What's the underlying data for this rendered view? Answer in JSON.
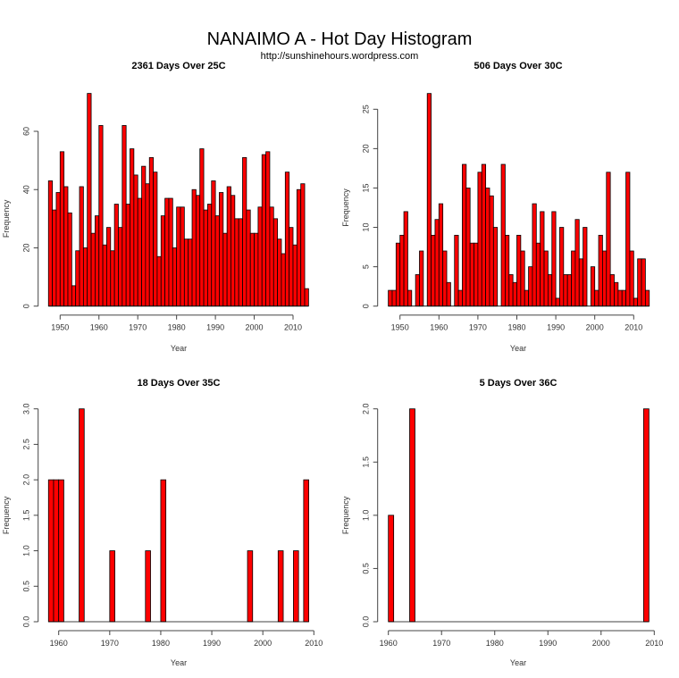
{
  "title": "NANAIMO A - Hot Day Histogram",
  "subtitle": "http://sunshinehours.wordpress.com",
  "colors": {
    "bar_fill": "#ff0000",
    "bar_stroke": "#000000"
  },
  "chart_data": [
    {
      "type": "bar",
      "title": "2361 Days Over 25C",
      "xlabel": "Year",
      "ylabel": "Frequency",
      "bin_width": 1,
      "x": [
        1947,
        1948,
        1949,
        1950,
        1951,
        1952,
        1953,
        1954,
        1955,
        1956,
        1957,
        1958,
        1959,
        1960,
        1961,
        1962,
        1963,
        1964,
        1965,
        1966,
        1967,
        1968,
        1969,
        1970,
        1971,
        1972,
        1973,
        1974,
        1975,
        1976,
        1977,
        1978,
        1979,
        1980,
        1981,
        1982,
        1983,
        1984,
        1985,
        1986,
        1987,
        1988,
        1989,
        1990,
        1991,
        1992,
        1993,
        1994,
        1995,
        1996,
        1997,
        1998,
        1999,
        2000,
        2001,
        2002,
        2003,
        2004,
        2005,
        2006,
        2007,
        2008,
        2009,
        2010,
        2011,
        2012,
        2013
      ],
      "values": [
        43,
        33,
        39,
        53,
        41,
        32,
        7,
        19,
        41,
        20,
        73,
        25,
        31,
        62,
        21,
        27,
        19,
        35,
        27,
        62,
        35,
        54,
        45,
        37,
        48,
        42,
        51,
        46,
        17,
        31,
        37,
        37,
        20,
        34,
        34,
        23,
        23,
        40,
        38,
        54,
        33,
        35,
        43,
        31,
        39,
        25,
        41,
        38,
        30,
        30,
        51,
        33,
        25,
        25,
        34,
        52,
        53,
        34,
        30,
        23,
        18,
        46,
        27,
        21,
        40,
        42,
        6
      ],
      "xticks": [
        "1950",
        "1960",
        "1970",
        "1980",
        "1990",
        "2000",
        "2010"
      ],
      "yticks": [
        "0",
        "20",
        "40",
        "60"
      ]
    },
    {
      "type": "bar",
      "title": "506 Days Over 30C",
      "xlabel": "Year",
      "ylabel": "Frequency",
      "bin_width": 1,
      "x": [
        1947,
        1948,
        1949,
        1950,
        1951,
        1952,
        1953,
        1954,
        1955,
        1956,
        1957,
        1958,
        1959,
        1960,
        1961,
        1962,
        1963,
        1964,
        1965,
        1966,
        1967,
        1968,
        1969,
        1970,
        1971,
        1972,
        1973,
        1974,
        1975,
        1976,
        1977,
        1978,
        1979,
        1980,
        1981,
        1982,
        1983,
        1984,
        1985,
        1986,
        1987,
        1988,
        1989,
        1990,
        1991,
        1992,
        1993,
        1994,
        1995,
        1996,
        1997,
        1998,
        1999,
        2000,
        2001,
        2002,
        2003,
        2004,
        2005,
        2006,
        2007,
        2008,
        2009,
        2010,
        2011,
        2012,
        2013
      ],
      "values": [
        2,
        2,
        8,
        9,
        12,
        2,
        0,
        4,
        7,
        0,
        27,
        9,
        11,
        13,
        7,
        3,
        0,
        9,
        2,
        18,
        15,
        8,
        8,
        17,
        18,
        15,
        14,
        10,
        0,
        18,
        9,
        4,
        3,
        9,
        7,
        2,
        5,
        13,
        8,
        12,
        7,
        4,
        12,
        1,
        10,
        4,
        4,
        7,
        11,
        6,
        10,
        0,
        5,
        2,
        9,
        7,
        17,
        4,
        3,
        2,
        2,
        17,
        7,
        1,
        6,
        6,
        2
      ],
      "xticks": [
        "1950",
        "1960",
        "1970",
        "1980",
        "1990",
        "2000",
        "2010"
      ],
      "yticks": [
        "0",
        "5",
        "10",
        "15",
        "20",
        "25"
      ]
    },
    {
      "type": "bar",
      "title": "18 Days Over 35C",
      "xlabel": "Year",
      "ylabel": "Frequency",
      "bin_width": 1,
      "x_range": [
        1958,
        2009
      ],
      "x": [
        1958,
        1959,
        1960,
        1964,
        1970,
        1977,
        1980,
        1997,
        2003,
        2006,
        2008
      ],
      "values": [
        2,
        2,
        2,
        3,
        1,
        1,
        2,
        1,
        1,
        1,
        2
      ],
      "xticks": [
        "1960",
        "1970",
        "1980",
        "1990",
        "2000",
        "2010"
      ],
      "yticks": [
        "0.0",
        "0.5",
        "1.0",
        "1.5",
        "2.0",
        "2.5",
        "3.0"
      ]
    },
    {
      "type": "bar",
      "title": "5 Days Over 36C",
      "xlabel": "Year",
      "ylabel": "Frequency",
      "bin_width": 1,
      "x_range": [
        1960,
        2009
      ],
      "x": [
        1960,
        1964,
        2008
      ],
      "values": [
        1,
        2,
        2
      ],
      "xticks": [
        "1960",
        "1970",
        "1980",
        "1990",
        "2000",
        "2010"
      ],
      "yticks": [
        "0.0",
        "0.5",
        "1.0",
        "1.5",
        "2.0"
      ]
    }
  ]
}
